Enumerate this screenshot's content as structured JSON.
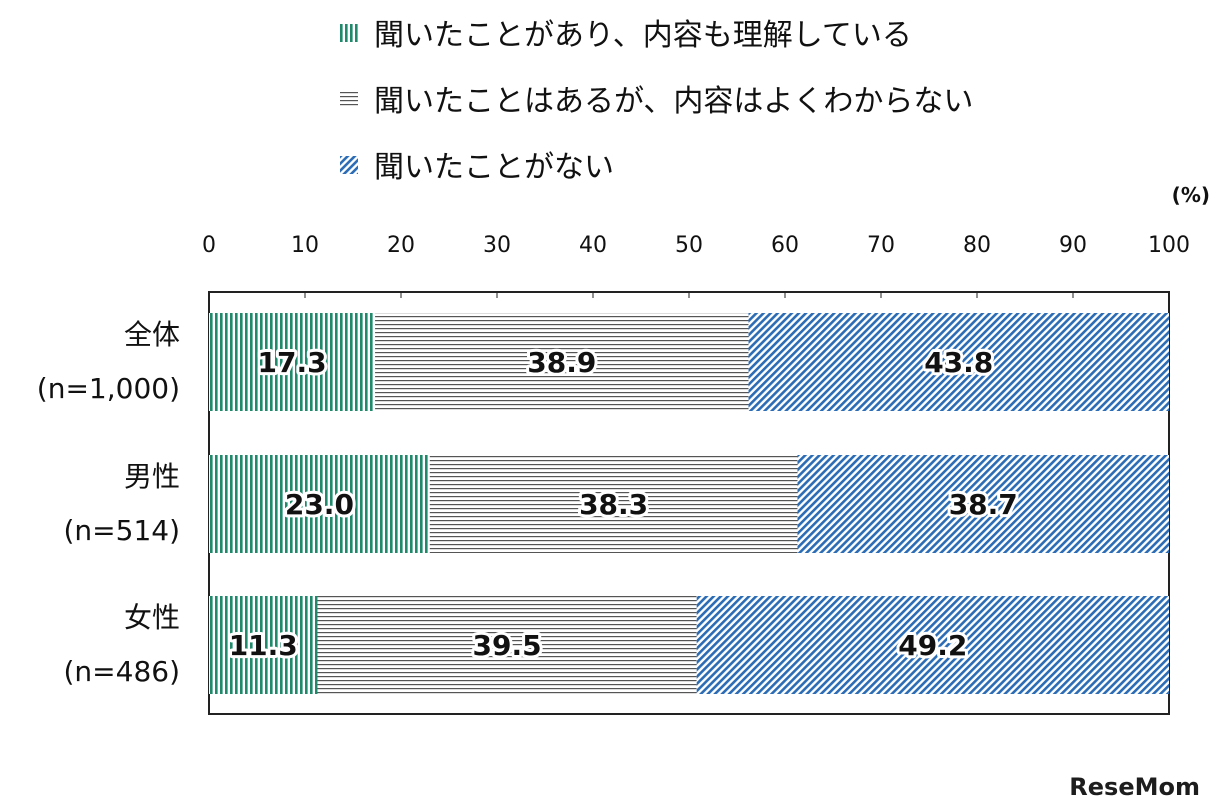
{
  "chart_data": {
    "type": "bar",
    "orientation": "horizontal",
    "stacked": true,
    "unit": "(%)",
    "xlim": [
      0,
      100
    ],
    "x_ticks": [
      0,
      10,
      20,
      30,
      40,
      50,
      60,
      70,
      80,
      90,
      100
    ],
    "categories": [
      {
        "name": "全体",
        "n": "(n=1,000)"
      },
      {
        "name": "男性",
        "n": "(n=514)"
      },
      {
        "name": "女性",
        "n": "(n=486)"
      }
    ],
    "series": [
      {
        "name": "聞いたことがあり、内容も理解している",
        "values": [
          17.3,
          23.0,
          11.3
        ],
        "color": "#1f8a6a",
        "pattern": "vertical-stripes"
      },
      {
        "name": "聞いたことはあるが、内容はよくわからない",
        "values": [
          38.9,
          38.3,
          39.5
        ],
        "color": "#555555",
        "pattern": "horizontal-stripes"
      },
      {
        "name": "聞いたことがない",
        "values": [
          43.8,
          38.7,
          49.2
        ],
        "color": "#2b6cb5",
        "pattern": "diagonal-stripes"
      }
    ],
    "legend_position": "top",
    "grid": false
  },
  "watermark": "ReseMom"
}
